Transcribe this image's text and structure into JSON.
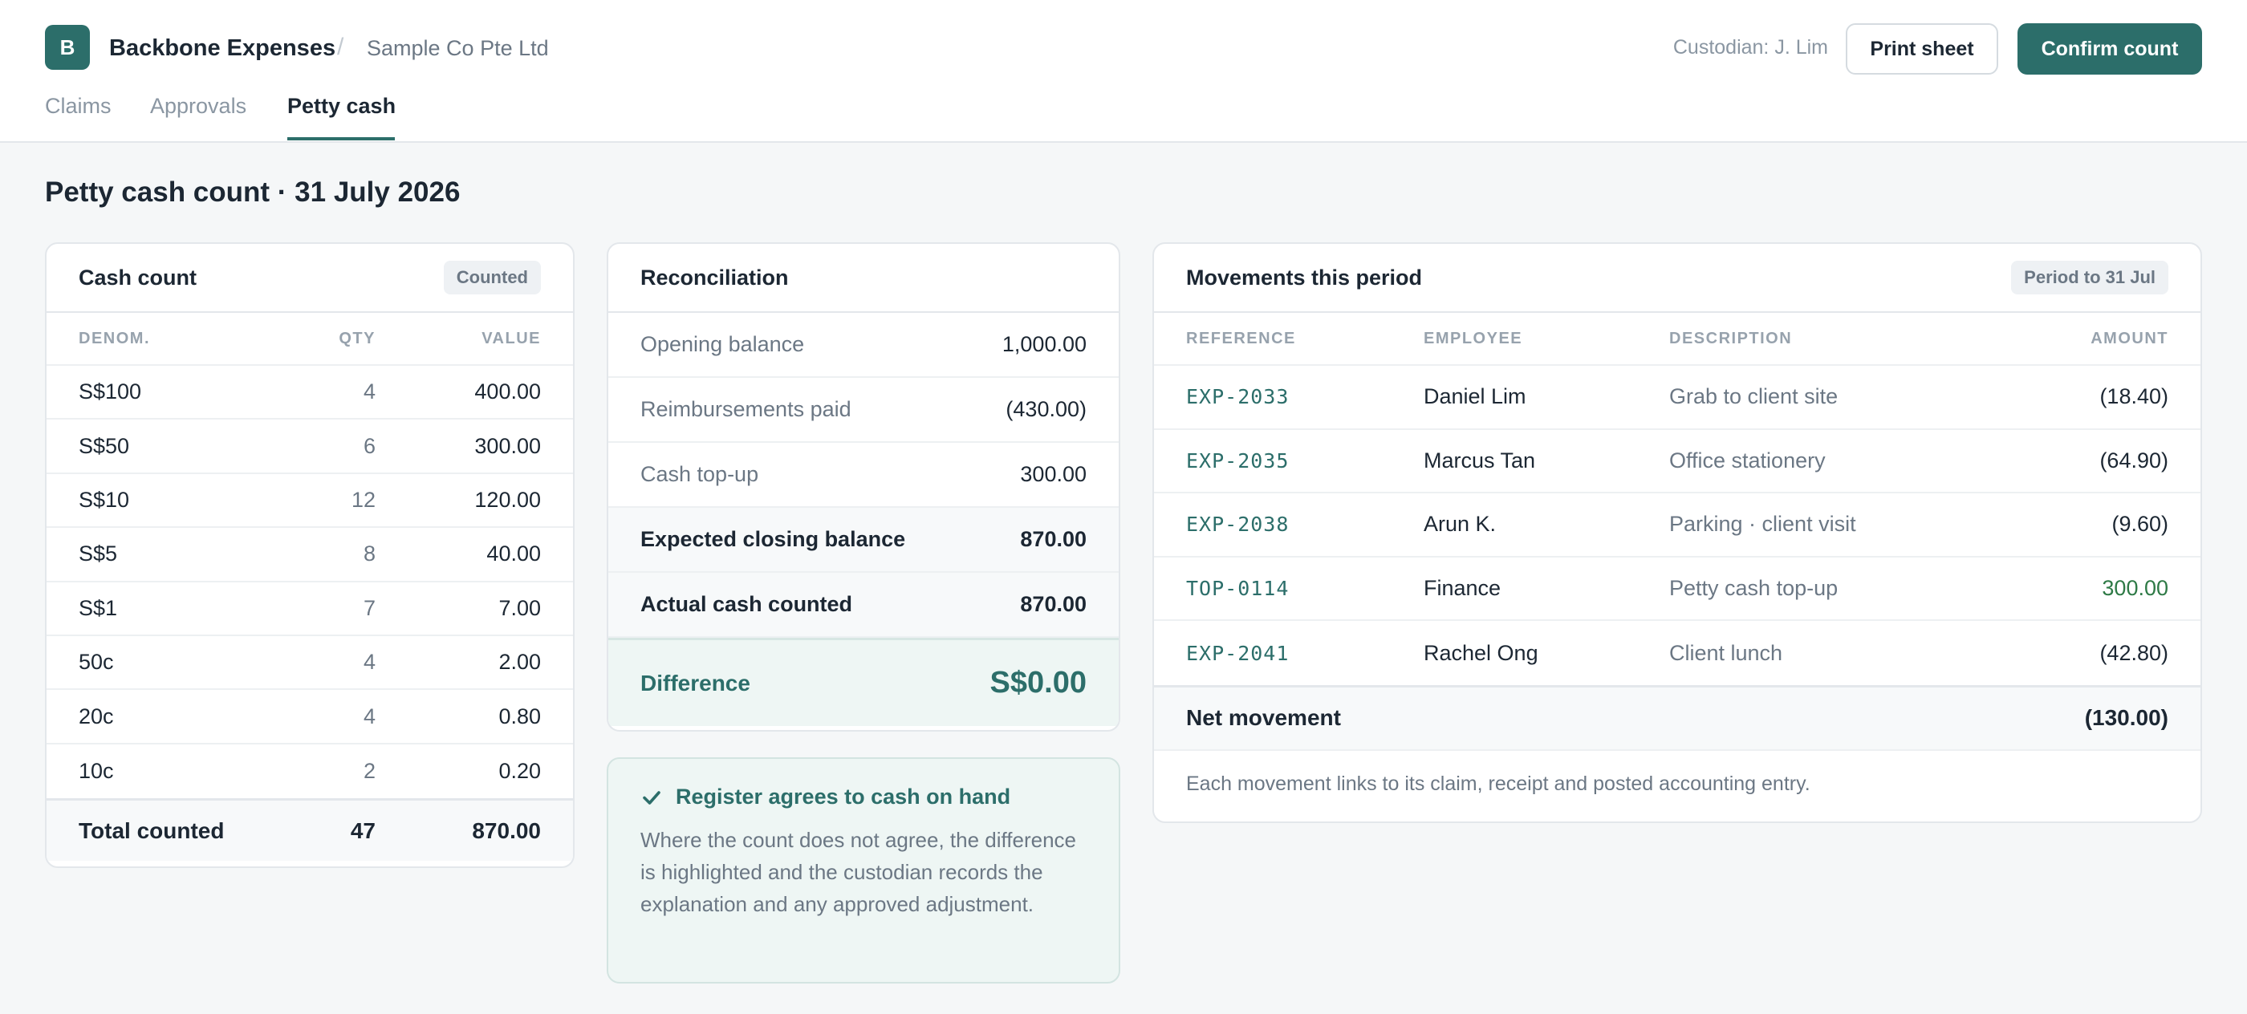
{
  "app": {
    "logo_letter": "B",
    "name": "Backbone Expenses",
    "separator": "/",
    "company": "Sample Co Pte Ltd",
    "custodian": "Custodian: J. Lim",
    "print_label": "Print sheet",
    "confirm_label": "Confirm count",
    "accent_color": "#2c6e6a"
  },
  "tabs": [
    {
      "label": "Claims",
      "active": false
    },
    {
      "label": "Approvals",
      "active": false
    },
    {
      "label": "Petty cash",
      "active": true
    }
  ],
  "page_title": "Petty cash count · 31 July 2026",
  "cash_count": {
    "title": "Cash count",
    "badge": "Counted",
    "headers": [
      "DENOM.",
      "QTY",
      "VALUE"
    ],
    "rows": [
      {
        "denom": "S$100",
        "qty": "4",
        "value": "400.00"
      },
      {
        "denom": "S$50",
        "qty": "6",
        "value": "300.00"
      },
      {
        "denom": "S$10",
        "qty": "12",
        "value": "120.00"
      },
      {
        "denom": "S$5",
        "qty": "8",
        "value": "40.00"
      },
      {
        "denom": "S$1",
        "qty": "7",
        "value": "7.00"
      },
      {
        "denom": "50c",
        "qty": "4",
        "value": "2.00"
      },
      {
        "denom": "20c",
        "qty": "4",
        "value": "0.80"
      },
      {
        "denom": "10c",
        "qty": "2",
        "value": "0.20"
      }
    ],
    "total": {
      "label": "Total counted",
      "qty": "47",
      "value": "870.00"
    }
  },
  "reconciliation": {
    "title": "Reconciliation",
    "rows": [
      {
        "label": "Opening balance",
        "value": "1,000.00"
      },
      {
        "label": "Reimbursements paid",
        "value": "(430.00)"
      },
      {
        "label": "Cash top-up",
        "value": "300.00"
      },
      {
        "label": "Expected closing balance",
        "value": "870.00"
      },
      {
        "label": "Actual cash counted",
        "value": "870.00"
      }
    ],
    "difference_label": "Difference",
    "difference_value": "S$0.00"
  },
  "agree_panel": {
    "icon": "check-icon",
    "title": "Register agrees to cash on hand",
    "body": "Where the count does not agree, the difference is highlighted and the custodian records the explanation and any approved adjustment."
  },
  "movements": {
    "title": "Movements this period",
    "badge": "Period to 31 Jul",
    "headers": [
      "REFERENCE",
      "EMPLOYEE",
      "DESCRIPTION",
      "AMOUNT"
    ],
    "rows": [
      {
        "ref": "EXP-2033",
        "employee": "Daniel Lim",
        "description": "Grab to client site",
        "amount": "(18.40)"
      },
      {
        "ref": "EXP-2035",
        "employee": "Marcus Tan",
        "description": "Office stationery",
        "amount": "(64.90)"
      },
      {
        "ref": "EXP-2038",
        "employee": "Arun K.",
        "description": "Parking · client visit",
        "amount": "(9.60)"
      },
      {
        "ref": "TOP-0114",
        "employee": "Finance",
        "description": "Petty cash top-up",
        "amount": "300.00"
      },
      {
        "ref": "EXP-2041",
        "employee": "Rachel Ong",
        "description": "Client lunch",
        "amount": "(42.80)"
      }
    ],
    "net_label": "Net movement",
    "net_value": "(130.00)",
    "footnote": "Each movement links to its claim, receipt and posted accounting entry."
  }
}
